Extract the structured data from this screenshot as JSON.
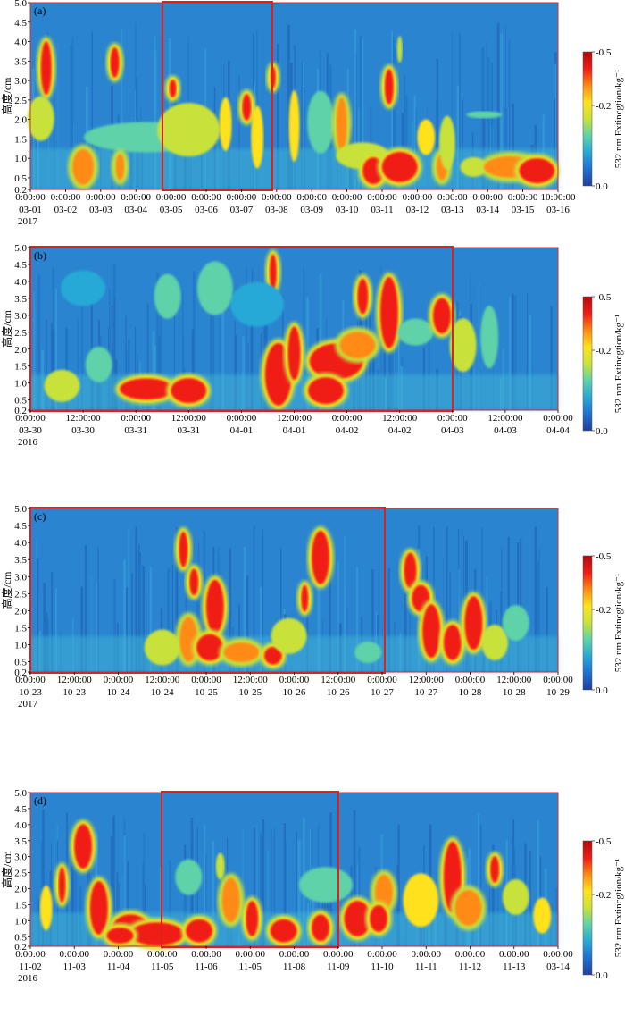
{
  "colorbar": {
    "label": "532 nm Extincgtion/kg⁻¹",
    "ticks": [
      "-0.5",
      "-0.2",
      "0.0"
    ],
    "colors": [
      "#1f3f9a",
      "#1f6fd1",
      "#27a9d6",
      "#5fd2a9",
      "#c8e23a",
      "#ffe21a",
      "#ff8a12",
      "#f01a14",
      "#b00c0c"
    ]
  },
  "chart_data": [
    {
      "type": "heatmap",
      "panel_label": "(a)",
      "ylabel": "高度/cm",
      "yticks": [
        "5.0",
        "4.5",
        "4.0",
        "3.5",
        "3.0",
        "2.5",
        "2.0",
        "1.5",
        "1.0",
        "0.5",
        "0.2"
      ],
      "ylim": [
        0.2,
        5.0
      ],
      "xtick_times": [
        "0:00:00",
        "0:00:00",
        "0:00:00",
        "0:00:00",
        "0:00:00",
        "0:00:00",
        "0:00:00",
        "0:00:00",
        "0:00:00",
        "0:00:00",
        "0:00:00",
        "0:00:00",
        "0:00:00",
        "0:00:00",
        "0:00:00",
        "10:00:00"
      ],
      "xtick_dates": [
        "03-01",
        "03-02",
        "03-03",
        "03-04",
        "03-05",
        "03-06",
        "03-07",
        "03-08",
        "03-09",
        "03-10",
        "03-11",
        "03-12",
        "03-13",
        "03-14",
        "03-15",
        "03-16"
      ],
      "year": "2017",
      "highlight_start": "03-05",
      "highlight_end": "03-08"
    },
    {
      "type": "heatmap",
      "panel_label": "(b)",
      "ylabel": "高度/cm",
      "yticks": [
        "5.0",
        "4.5",
        "4.0",
        "3.5",
        "3.0",
        "2.5",
        "2.0",
        "1.5",
        "1.0",
        "0.5",
        "0.2"
      ],
      "ylim": [
        0.2,
        5.0
      ],
      "xtick_times": [
        "0:00:00",
        "12:00:00",
        "0:00:00",
        "12:00:00",
        "0:00:00",
        "12:00:00",
        "0:00:00",
        "12:00:00",
        "0:00:00",
        "12:00:00",
        "0:00:00"
      ],
      "xtick_dates": [
        "03-30",
        "03-30",
        "03-31",
        "03-31",
        "04-01",
        "04-01",
        "04-02",
        "04-02",
        "04-03",
        "04-03",
        "04-04"
      ],
      "year": "2016",
      "highlight_start": "03-30 0:00",
      "highlight_end": "04-03 0:00"
    },
    {
      "type": "heatmap",
      "panel_label": "(c)",
      "ylabel": "高度/cm",
      "yticks": [
        "5.0",
        "4.5",
        "4.0",
        "3.5",
        "3.0",
        "2.5",
        "2.0",
        "1.5",
        "1.0",
        "0.5",
        "0.2"
      ],
      "ylim": [
        0.2,
        5.0
      ],
      "xtick_times": [
        "0:00:00",
        "12:00:00",
        "0:00:00",
        "12:00:00",
        "0:00:00",
        "12:00:00",
        "0:00:00",
        "12:00:00",
        "0:00:00",
        "12:00:00",
        "0:00:00",
        "12:00:00",
        "0:00:00"
      ],
      "xtick_dates": [
        "10-23",
        "10-23",
        "10-24",
        "10-24",
        "10-25",
        "10-25",
        "10-26",
        "10-26",
        "10-27",
        "10-27",
        "10-28",
        "10-28",
        "10-29"
      ],
      "year": "2017",
      "highlight_start": "10-23 0:00",
      "highlight_end": "10-27 0:00"
    },
    {
      "type": "heatmap",
      "panel_label": "(d)",
      "ylabel": "高度/cm",
      "yticks": [
        "5.0",
        "4.5",
        "4.0",
        "3.5",
        "3.0",
        "2.5",
        "2.0",
        "1.5",
        "1.0",
        "0.5",
        "0.2"
      ],
      "ylim": [
        0.2,
        5.0
      ],
      "xtick_times": [
        "0:00:00",
        "0:00:00",
        "0:00:00",
        "0:00:00",
        "0:00:00",
        "0:00:00",
        "0:00:00",
        "0:00:00",
        "0:00:00",
        "0:00:00",
        "0:00:00",
        "0:00:00",
        "0:00:00"
      ],
      "xtick_dates": [
        "11-02",
        "11-03",
        "11-04",
        "11-05",
        "11-06",
        "11-05",
        "11-08",
        "11-09",
        "11-10",
        "11-11",
        "11-12",
        "11-13",
        "03-14"
      ],
      "year": "2016",
      "highlight_start": "11-05",
      "highlight_end": "11-09"
    }
  ]
}
